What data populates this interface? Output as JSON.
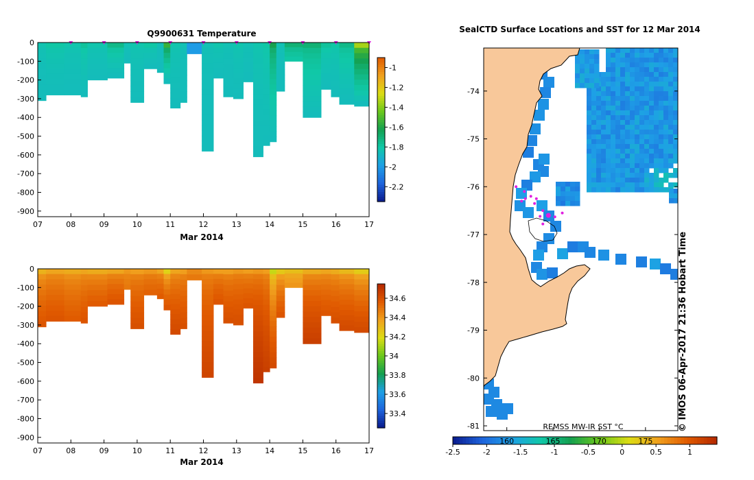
{
  "colors": {
    "land": "#f8c89a",
    "ice": "#ffffff",
    "sample_marker": "#e020e0",
    "temp_scale": [
      "#0a1a8c",
      "#1e64dc",
      "#1ea0e6",
      "#10c8a8",
      "#14a050",
      "#6cc81c",
      "#dcdc14",
      "#f0a01e",
      "#e05a00"
    ],
    "sal_scale": [
      "#0a1a8c",
      "#1e64dc",
      "#1ea0e6",
      "#14a050",
      "#6cc81c",
      "#dcdc14",
      "#f0a01e",
      "#e05a00",
      "#b42800"
    ],
    "sst_scale": [
      "#0a1a8c",
      "#1e64dc",
      "#1ea0e6",
      "#10c8a8",
      "#14a050",
      "#6cc81c",
      "#dcdc14",
      "#f0a01e",
      "#e05a00",
      "#b42800"
    ]
  },
  "chart_data": [
    {
      "id": "temperature",
      "type": "heatmap",
      "title": "Q9900631  Temperature",
      "xlabel": "Mar 2014",
      "ylabel": "",
      "x_ticks": [
        "07",
        "08",
        "09",
        "10",
        "11",
        "12",
        "13",
        "14",
        "15",
        "16",
        "17"
      ],
      "xlim": [
        7,
        17
      ],
      "y_ticks": [
        "0",
        "-100",
        "-200",
        "-300",
        "-400",
        "-500",
        "-600",
        "-700",
        "-800",
        "-900"
      ],
      "ylim": [
        -930,
        0
      ],
      "colorbar": {
        "min": -2.35,
        "max": -0.9,
        "ticks": [
          "-1",
          "-1.2",
          "-1.4",
          "-1.6",
          "-1.8",
          "-2",
          "-2.2"
        ],
        "tick_values": [
          -1,
          -1.2,
          -1.4,
          -1.6,
          -1.8,
          -2,
          -2.2
        ]
      },
      "sample_markers_day": [
        8,
        9,
        10,
        11,
        12,
        13,
        14,
        15,
        16,
        17
      ],
      "profiles": [
        {
          "t0": 7.0,
          "t1": 7.25,
          "depth": 310,
          "surface": -1.83,
          "deep": -1.86
        },
        {
          "t0": 7.25,
          "t1": 7.8,
          "depth": 280,
          "surface": -1.8,
          "deep": -1.86
        },
        {
          "t0": 7.8,
          "t1": 8.3,
          "depth": 280,
          "surface": -1.82,
          "deep": -1.86
        },
        {
          "t0": 8.3,
          "t1": 8.5,
          "depth": 290,
          "surface": -1.78,
          "deep": -1.86
        },
        {
          "t0": 8.5,
          "t1": 9.1,
          "depth": 200,
          "surface": -1.82,
          "deep": -1.86
        },
        {
          "t0": 9.1,
          "t1": 9.6,
          "depth": 190,
          "surface": -1.74,
          "deep": -1.86
        },
        {
          "t0": 9.6,
          "t1": 9.8,
          "depth": 110,
          "surface": -1.84,
          "deep": -1.86
        },
        {
          "t0": 9.8,
          "t1": 10.2,
          "depth": 320,
          "surface": -1.82,
          "deep": -1.86
        },
        {
          "t0": 10.2,
          "t1": 10.6,
          "depth": 140,
          "surface": -1.8,
          "deep": -1.86
        },
        {
          "t0": 10.6,
          "t1": 10.8,
          "depth": 160,
          "surface": -1.85,
          "deep": -1.86
        },
        {
          "t0": 10.8,
          "t1": 11.0,
          "depth": 220,
          "surface": -1.55,
          "deep": -1.86
        },
        {
          "t0": 11.0,
          "t1": 11.3,
          "depth": 350,
          "surface": -1.82,
          "deep": -1.86
        },
        {
          "t0": 11.3,
          "t1": 11.5,
          "depth": 320,
          "surface": -1.84,
          "deep": -1.86
        },
        {
          "t0": 11.5,
          "t1": 11.95,
          "depth": 60,
          "surface": -2.0,
          "deep": -2.0
        },
        {
          "t0": 11.95,
          "t1": 12.3,
          "depth": 580,
          "surface": -1.84,
          "deep": -1.86
        },
        {
          "t0": 12.3,
          "t1": 12.6,
          "depth": 190,
          "surface": -1.82,
          "deep": -1.86
        },
        {
          "t0": 12.6,
          "t1": 12.9,
          "depth": 290,
          "surface": -1.84,
          "deep": -1.86
        },
        {
          "t0": 12.9,
          "t1": 13.2,
          "depth": 300,
          "surface": -1.82,
          "deep": -1.86
        },
        {
          "t0": 13.2,
          "t1": 13.5,
          "depth": 210,
          "surface": -1.84,
          "deep": -1.86
        },
        {
          "t0": 13.5,
          "t1": 13.8,
          "depth": 610,
          "surface": -1.82,
          "deep": -1.86
        },
        {
          "t0": 13.8,
          "t1": 14.0,
          "depth": 550,
          "surface": -1.8,
          "deep": -1.86
        },
        {
          "t0": 14.0,
          "t1": 14.2,
          "depth": 530,
          "surface": -1.62,
          "deep": -1.86
        },
        {
          "t0": 14.2,
          "t1": 14.45,
          "depth": 260,
          "surface": -1.84,
          "deep": -1.86
        },
        {
          "t0": 14.45,
          "t1": 15.0,
          "depth": 100,
          "surface": -1.7,
          "deep": -1.8
        },
        {
          "t0": 15.0,
          "t1": 15.55,
          "depth": 400,
          "surface": -1.7,
          "deep": -1.86
        },
        {
          "t0": 15.55,
          "t1": 15.85,
          "depth": 250,
          "surface": -1.78,
          "deep": -1.86
        },
        {
          "t0": 15.85,
          "t1": 16.1,
          "depth": 290,
          "surface": -1.8,
          "deep": -1.86
        },
        {
          "t0": 16.1,
          "t1": 16.55,
          "depth": 330,
          "surface": -1.74,
          "deep": -1.86
        },
        {
          "t0": 16.55,
          "t1": 17.0,
          "depth": 340,
          "surface": -1.35,
          "deep": -1.86
        }
      ]
    },
    {
      "id": "salinity",
      "type": "heatmap",
      "title": "",
      "xlabel": "Mar 2014",
      "ylabel": "",
      "x_ticks": [
        "07",
        "08",
        "09",
        "10",
        "11",
        "12",
        "13",
        "14",
        "15",
        "16",
        "17"
      ],
      "xlim": [
        7,
        17
      ],
      "y_ticks": [
        "0",
        "-100",
        "-200",
        "-300",
        "-400",
        "-500",
        "-600",
        "-700",
        "-800",
        "-900"
      ],
      "ylim": [
        -930,
        0
      ],
      "colorbar": {
        "min": 33.25,
        "max": 34.75,
        "ticks": [
          "34.6",
          "34.4",
          "34.2",
          "34",
          "33.8",
          "33.6",
          "33.4"
        ],
        "tick_values": [
          34.6,
          34.4,
          34.2,
          34,
          33.8,
          33.6,
          33.4
        ]
      },
      "profiles": [
        {
          "t0": 7.0,
          "t1": 7.25,
          "depth": 310,
          "surface": 34.32,
          "deep": 34.58
        },
        {
          "t0": 7.25,
          "t1": 7.8,
          "depth": 280,
          "surface": 34.36,
          "deep": 34.58
        },
        {
          "t0": 7.8,
          "t1": 8.3,
          "depth": 280,
          "surface": 34.34,
          "deep": 34.56
        },
        {
          "t0": 8.3,
          "t1": 8.5,
          "depth": 290,
          "surface": 34.36,
          "deep": 34.58
        },
        {
          "t0": 8.5,
          "t1": 9.1,
          "depth": 200,
          "surface": 34.34,
          "deep": 34.56
        },
        {
          "t0": 9.1,
          "t1": 9.6,
          "depth": 190,
          "surface": 34.36,
          "deep": 34.58
        },
        {
          "t0": 9.6,
          "t1": 9.8,
          "depth": 110,
          "surface": 34.4,
          "deep": 34.48
        },
        {
          "t0": 9.8,
          "t1": 10.2,
          "depth": 320,
          "surface": 34.38,
          "deep": 34.6
        },
        {
          "t0": 10.2,
          "t1": 10.6,
          "depth": 140,
          "surface": 34.4,
          "deep": 34.54
        },
        {
          "t0": 10.6,
          "t1": 10.8,
          "depth": 160,
          "surface": 34.36,
          "deep": 34.56
        },
        {
          "t0": 10.8,
          "t1": 11.0,
          "depth": 220,
          "surface": 34.22,
          "deep": 34.58
        },
        {
          "t0": 11.0,
          "t1": 11.3,
          "depth": 350,
          "surface": 34.36,
          "deep": 34.62
        },
        {
          "t0": 11.3,
          "t1": 11.5,
          "depth": 320,
          "surface": 34.38,
          "deep": 34.6
        },
        {
          "t0": 11.5,
          "t1": 11.95,
          "depth": 60,
          "surface": 34.44,
          "deep": 34.48
        },
        {
          "t0": 11.95,
          "t1": 12.3,
          "depth": 580,
          "surface": 34.4,
          "deep": 34.64
        },
        {
          "t0": 12.3,
          "t1": 12.6,
          "depth": 190,
          "surface": 34.38,
          "deep": 34.58
        },
        {
          "t0": 12.6,
          "t1": 12.9,
          "depth": 290,
          "surface": 34.38,
          "deep": 34.6
        },
        {
          "t0": 12.9,
          "t1": 13.2,
          "depth": 300,
          "surface": 34.4,
          "deep": 34.6
        },
        {
          "t0": 13.2,
          "t1": 13.5,
          "depth": 210,
          "surface": 34.38,
          "deep": 34.58
        },
        {
          "t0": 13.5,
          "t1": 13.8,
          "depth": 610,
          "surface": 34.4,
          "deep": 34.7
        },
        {
          "t0": 13.8,
          "t1": 14.0,
          "depth": 550,
          "surface": 34.38,
          "deep": 34.66
        },
        {
          "t0": 14.0,
          "t1": 14.2,
          "depth": 530,
          "surface": 34.15,
          "deep": 34.62
        },
        {
          "t0": 14.2,
          "t1": 14.45,
          "depth": 260,
          "surface": 34.25,
          "deep": 34.58
        },
        {
          "t0": 14.45,
          "t1": 15.0,
          "depth": 100,
          "surface": 34.28,
          "deep": 34.4
        },
        {
          "t0": 15.0,
          "t1": 15.55,
          "depth": 400,
          "surface": 34.34,
          "deep": 34.66
        },
        {
          "t0": 15.55,
          "t1": 15.85,
          "depth": 250,
          "surface": 34.36,
          "deep": 34.58
        },
        {
          "t0": 15.85,
          "t1": 16.1,
          "depth": 290,
          "surface": 34.34,
          "deep": 34.6
        },
        {
          "t0": 16.1,
          "t1": 16.55,
          "depth": 330,
          "surface": 34.3,
          "deep": 34.62
        },
        {
          "t0": 16.55,
          "t1": 17.0,
          "depth": 340,
          "surface": 34.24,
          "deep": 34.62
        }
      ]
    },
    {
      "id": "sst_map",
      "type": "heatmap",
      "title": "SealCTD Surface Locations and SST for 12 Mar 2014",
      "xlabel": "",
      "ylabel": "",
      "x_ticks": [
        "160",
        "165",
        "170",
        "175"
      ],
      "x_tick_values": [
        160,
        165,
        170,
        175
      ],
      "xlim": [
        157.5,
        178.5
      ],
      "y_ticks": [
        "-74",
        "-75",
        "-76",
        "-77",
        "-78",
        "-79",
        "-80",
        "-81"
      ],
      "y_tick_values": [
        -74,
        -75,
        -76,
        -77,
        -78,
        -79,
        -80,
        -81
      ],
      "ylim": [
        -81.1,
        -73.1
      ],
      "colorbar": {
        "min": -2.5,
        "max": 1.4,
        "label": "REMSS MW-IR SST °C",
        "ticks": [
          "-2.5",
          "-2",
          "-1.5",
          "-1",
          "-0.5",
          "0",
          "0.5",
          "1"
        ],
        "tick_values": [
          -2.5,
          -2,
          -1.5,
          -1,
          -0.5,
          0,
          0.5,
          1
        ]
      },
      "seal_locations": [
        {
          "lon": 161.0,
          "lat": -76.0
        },
        {
          "lon": 161.9,
          "lat": -76.1
        },
        {
          "lon": 162.6,
          "lat": -76.2
        },
        {
          "lon": 163.2,
          "lat": -76.25
        },
        {
          "lon": 162.0,
          "lat": -76.25
        },
        {
          "lon": 163.0,
          "lat": -76.35
        },
        {
          "lon": 161.6,
          "lat": -76.3
        },
        {
          "lon": 163.9,
          "lat": -76.5
        },
        {
          "lon": 164.5,
          "lat": -76.6
        },
        {
          "lon": 165.2,
          "lat": -76.63
        },
        {
          "lon": 166.0,
          "lat": -76.55
        },
        {
          "lon": 163.9,
          "lat": -76.78
        },
        {
          "lon": 163.6,
          "lat": -76.62
        }
      ]
    }
  ],
  "credit": "© IMOS 06-Apr-2017 21:36 Hobart Time"
}
